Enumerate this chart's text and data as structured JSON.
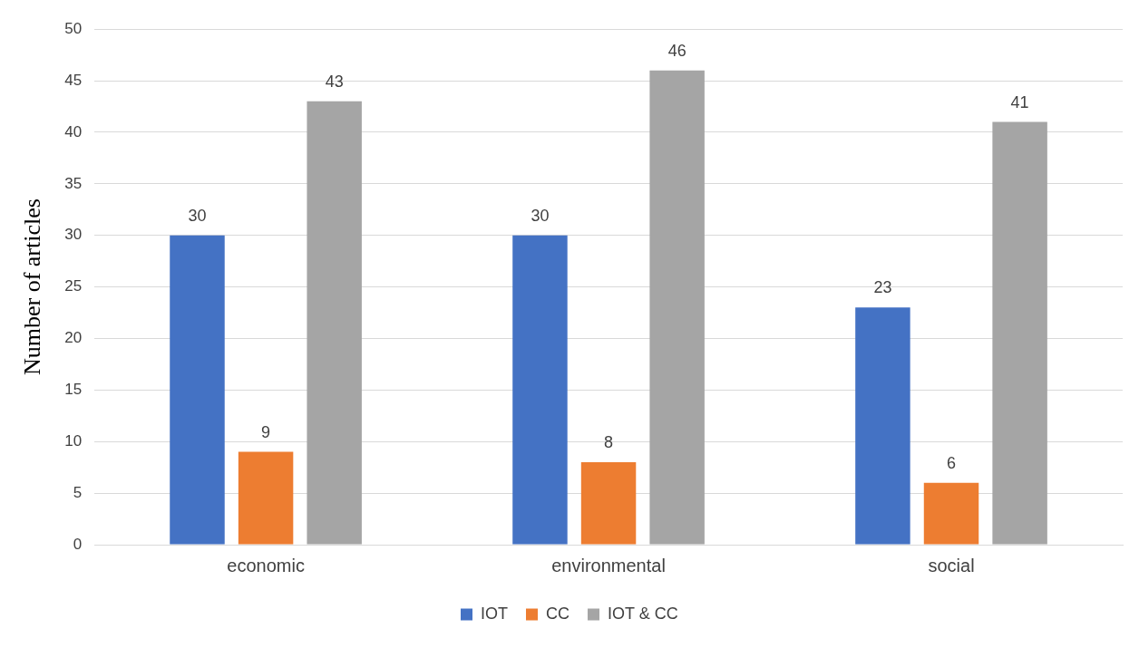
{
  "chart_data": {
    "type": "bar",
    "ylabel": "Number of articles",
    "categories": [
      "economic",
      "environmental",
      "social"
    ],
    "series": [
      {
        "name": "IOT",
        "color": "#4472c4",
        "values": [
          30,
          30,
          23
        ]
      },
      {
        "name": "CC",
        "color": "#ed7d31",
        "values": [
          9,
          8,
          6
        ]
      },
      {
        "name": "IOT & CC",
        "color": "#a5a5a5",
        "values": [
          43,
          46,
          41
        ]
      }
    ],
    "ylim": [
      0,
      50
    ],
    "yticks": [
      0,
      5,
      10,
      15,
      20,
      25,
      30,
      35,
      40,
      45,
      50
    ],
    "grid": "y",
    "legend": "bottom",
    "data_labels": true
  }
}
